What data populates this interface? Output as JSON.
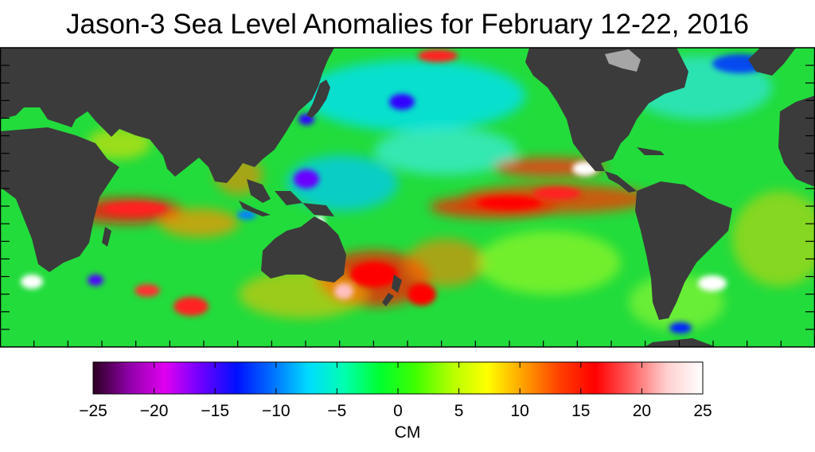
{
  "title": "Jason-3 Sea Level Anomalies for February 12-22, 2016",
  "colorbar": {
    "unit": "CM",
    "range": [
      -25,
      25
    ],
    "ticks": [
      "−25",
      "−20",
      "−15",
      "−10",
      "−5",
      "0",
      "5",
      "10",
      "15",
      "20",
      "25"
    ],
    "stops": [
      "#2b0020",
      "#8e00a8",
      "#e000f0",
      "#6e00ff",
      "#0010ff",
      "#0070ff",
      "#00dcff",
      "#00ffb0",
      "#00ff30",
      "#40ff00",
      "#b4ff00",
      "#ffff00",
      "#ffa000",
      "#ff4000",
      "#ff0000",
      "#ff6060",
      "#ffd0d0",
      "#ffffff"
    ]
  },
  "colors": {
    "land": "#3b3b3b",
    "ice": "#a6a6a6",
    "ocean_base": "#22dc3c",
    "frame": "#000000"
  }
}
